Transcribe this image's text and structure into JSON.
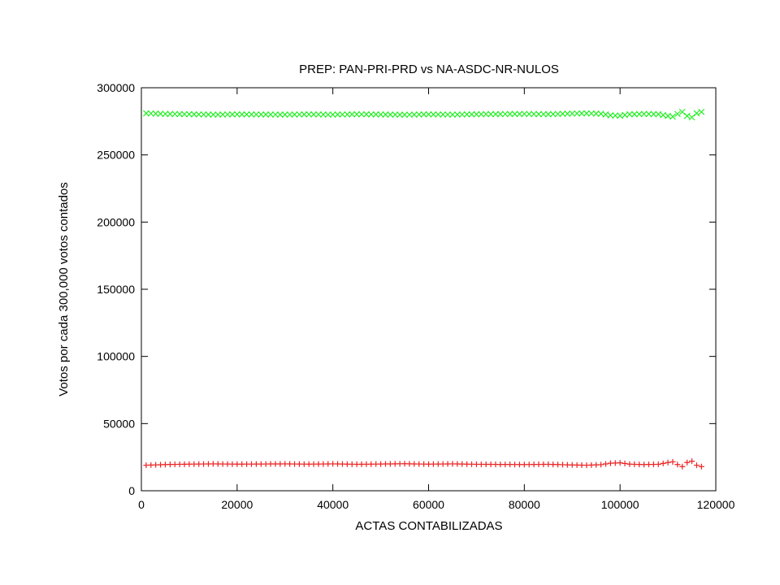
{
  "chart_data": {
    "type": "scatter",
    "title": "PREP: PAN-PRI-PRD  vs   NA-ASDC-NR-NULOS",
    "xlabel": "ACTAS CONTABILIZADAS",
    "ylabel": "Votos por cada 300,000 votos contados",
    "xlim": [
      0,
      120000
    ],
    "ylim": [
      0,
      300000
    ],
    "xticks": [
      "0",
      "20000",
      "40000",
      "60000",
      "80000",
      "100000",
      "120000"
    ],
    "yticks": [
      "0",
      "50000",
      "100000",
      "150000",
      "200000",
      "250000",
      "300000"
    ],
    "grid": false,
    "legend": "none",
    "series": [
      {
        "marker": "x",
        "color": "#22ee22",
        "points": [
          [
            1000,
            281000
          ],
          [
            5000,
            280500
          ],
          [
            10000,
            280300
          ],
          [
            15000,
            280000
          ],
          [
            20000,
            280200
          ],
          [
            25000,
            280100
          ],
          [
            30000,
            280000
          ],
          [
            35000,
            280200
          ],
          [
            40000,
            280000
          ],
          [
            45000,
            280300
          ],
          [
            50000,
            280100
          ],
          [
            55000,
            279900
          ],
          [
            60000,
            280200
          ],
          [
            65000,
            280000
          ],
          [
            70000,
            280300
          ],
          [
            75000,
            280400
          ],
          [
            80000,
            280500
          ],
          [
            85000,
            280300
          ],
          [
            90000,
            280800
          ],
          [
            93000,
            281000
          ],
          [
            96000,
            280600
          ],
          [
            98000,
            279500
          ],
          [
            100000,
            279200
          ],
          [
            102000,
            280200
          ],
          [
            105000,
            280500
          ],
          [
            108000,
            280300
          ],
          [
            110000,
            279000
          ],
          [
            111000,
            278500
          ],
          [
            112000,
            280500
          ],
          [
            113000,
            282000
          ],
          [
            114000,
            279000
          ],
          [
            115000,
            278000
          ],
          [
            116000,
            281000
          ],
          [
            117000,
            282000
          ]
        ]
      },
      {
        "marker": "+",
        "color": "#ee2222",
        "points": [
          [
            1000,
            19000
          ],
          [
            5000,
            19500
          ],
          [
            10000,
            19800
          ],
          [
            15000,
            20000
          ],
          [
            20000,
            19800
          ],
          [
            25000,
            19900
          ],
          [
            30000,
            20000
          ],
          [
            35000,
            19800
          ],
          [
            40000,
            20000
          ],
          [
            45000,
            19700
          ],
          [
            50000,
            19900
          ],
          [
            55000,
            20100
          ],
          [
            60000,
            19800
          ],
          [
            65000,
            20000
          ],
          [
            70000,
            19700
          ],
          [
            75000,
            19600
          ],
          [
            80000,
            19500
          ],
          [
            85000,
            19700
          ],
          [
            90000,
            19200
          ],
          [
            93000,
            19000
          ],
          [
            96000,
            19400
          ],
          [
            98000,
            20500
          ],
          [
            100000,
            20800
          ],
          [
            102000,
            19800
          ],
          [
            105000,
            19500
          ],
          [
            108000,
            19700
          ],
          [
            110000,
            21000
          ],
          [
            111000,
            21500
          ],
          [
            112000,
            19500
          ],
          [
            113000,
            18000
          ],
          [
            114000,
            21000
          ],
          [
            115000,
            22000
          ],
          [
            116000,
            19000
          ],
          [
            117000,
            18000
          ]
        ]
      }
    ]
  }
}
